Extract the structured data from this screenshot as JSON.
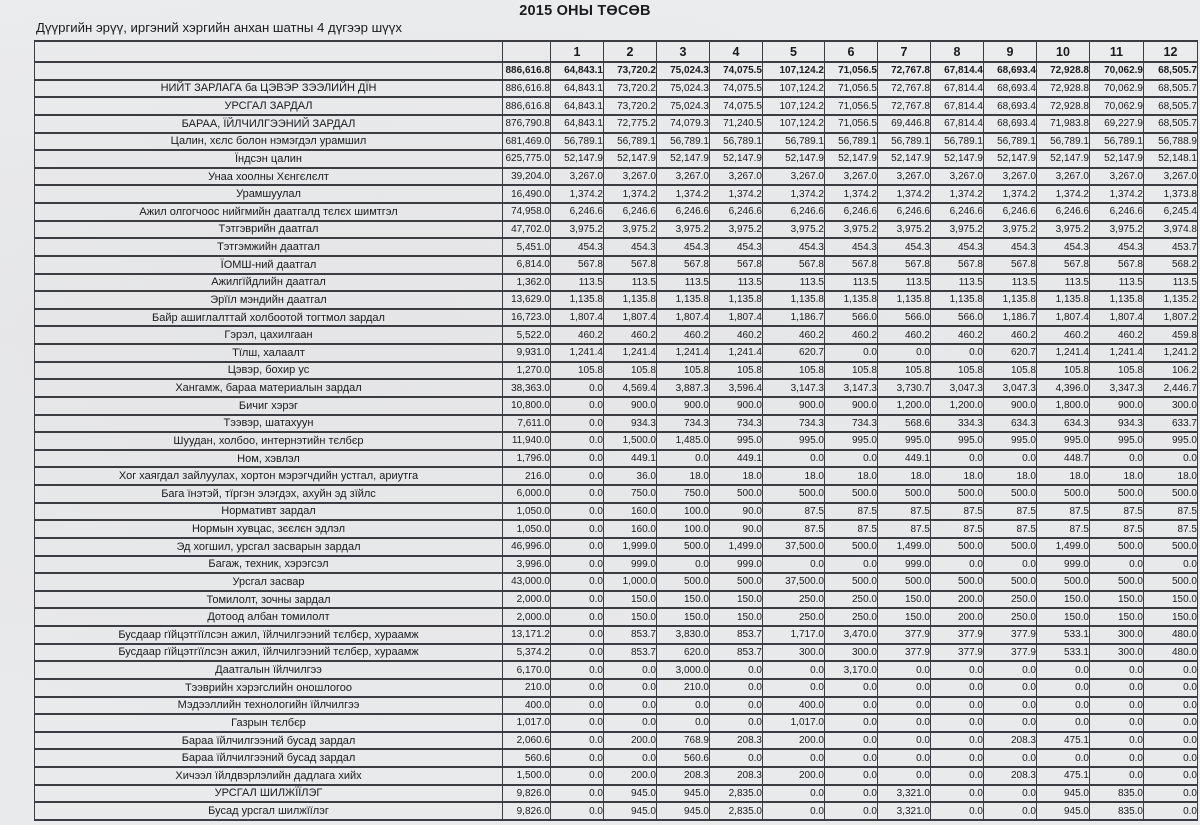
{
  "page": {
    "title": "2015 ОНЫ ТӨСӨВ",
    "subtitle": "Дүүргийн эрүү, иргэний хэргийн анхан шатны 4 дүгээр шүүх"
  },
  "colors": {
    "paper": "#e9eaec",
    "ink": "#1a1b1f",
    "grid": "#3b3d43"
  },
  "table": {
    "month_headers": [
      "1",
      "2",
      "3",
      "4",
      "5",
      "6",
      "7",
      "8",
      "9",
      "10",
      "11",
      "12"
    ],
    "rows": [
      {
        "label": "",
        "bold": true,
        "values": [
          "886,616.8",
          "64,843.1",
          "73,720.2",
          "75,024.3",
          "74,075.5",
          "107,124.2",
          "71,056.5",
          "72,767.8",
          "67,814.4",
          "68,693.4",
          "72,928.8",
          "70,062.9",
          "68,505.7"
        ]
      },
      {
        "label": "НИЙТ ЗАРЛАГА ба ЦЭВЭР ЗЭЭЛИЙН ДЇН",
        "values": [
          "886,616.8",
          "64,843.1",
          "73,720.2",
          "75,024.3",
          "74,075.5",
          "107,124.2",
          "71,056.5",
          "72,767.8",
          "67,814.4",
          "68,693.4",
          "72,928.8",
          "70,062.9",
          "68,505.7"
        ]
      },
      {
        "label": "УРСГАЛ ЗАРДАЛ",
        "values": [
          "886,616.8",
          "64,843.1",
          "73,720.2",
          "75,024.3",
          "74,075.5",
          "107,124.2",
          "71,056.5",
          "72,767.8",
          "67,814.4",
          "68,693.4",
          "72,928.8",
          "70,062.9",
          "68,505.7"
        ]
      },
      {
        "label": "БАРАА, ЇЙЛЧИЛГЭЭНИЙ ЗАРДАЛ",
        "values": [
          "876,790.8",
          "64,843.1",
          "72,775.2",
          "74,079.3",
          "71,240.5",
          "107,124.2",
          "71,056.5",
          "69,446.8",
          "67,814.4",
          "68,693.4",
          "71,983.8",
          "69,227.9",
          "68,505.7"
        ]
      },
      {
        "label": "Цалин, хєлс болон нэмэгдэл урамшил",
        "values": [
          "681,469.0",
          "56,789.1",
          "56,789.1",
          "56,789.1",
          "56,789.1",
          "56,789.1",
          "56,789.1",
          "56,789.1",
          "56,789.1",
          "56,789.1",
          "56,789.1",
          "56,789.1",
          "56,788.9"
        ]
      },
      {
        "label": "Їндсэн цалин",
        "values": [
          "625,775.0",
          "52,147.9",
          "52,147.9",
          "52,147.9",
          "52,147.9",
          "52,147.9",
          "52,147.9",
          "52,147.9",
          "52,147.9",
          "52,147.9",
          "52,147.9",
          "52,147.9",
          "52,148.1"
        ]
      },
      {
        "label": "Унаа хоолны Хєнгєлєлт",
        "values": [
          "39,204.0",
          "3,267.0",
          "3,267.0",
          "3,267.0",
          "3,267.0",
          "3,267.0",
          "3,267.0",
          "3,267.0",
          "3,267.0",
          "3,267.0",
          "3,267.0",
          "3,267.0",
          "3,267.0"
        ]
      },
      {
        "label": "Урамшуулал",
        "values": [
          "16,490.0",
          "1,374.2",
          "1,374.2",
          "1,374.2",
          "1,374.2",
          "1,374.2",
          "1,374.2",
          "1,374.2",
          "1,374.2",
          "1,374.2",
          "1,374.2",
          "1,374.2",
          "1,373.8"
        ]
      },
      {
        "label": "Ажил олгогчоос нийгмийн даатгалд тєлєх шимтгэл",
        "values": [
          "74,958.0",
          "6,246.6",
          "6,246.6",
          "6,246.6",
          "6,246.6",
          "6,246.6",
          "6,246.6",
          "6,246.6",
          "6,246.6",
          "6,246.6",
          "6,246.6",
          "6,246.6",
          "6,245.4"
        ]
      },
      {
        "label": "Тэтгэврийн даатгал",
        "values": [
          "47,702.0",
          "3,975.2",
          "3,975.2",
          "3,975.2",
          "3,975.2",
          "3,975.2",
          "3,975.2",
          "3,975.2",
          "3,975.2",
          "3,975.2",
          "3,975.2",
          "3,975.2",
          "3,974.8"
        ]
      },
      {
        "label": "Тэтгэмжийн даатгал",
        "values": [
          "5,451.0",
          "454.3",
          "454.3",
          "454.3",
          "454.3",
          "454.3",
          "454.3",
          "454.3",
          "454.3",
          "454.3",
          "454.3",
          "454.3",
          "453.7"
        ]
      },
      {
        "label": "ЇОМШ-ний даатгал",
        "values": [
          "6,814.0",
          "567.8",
          "567.8",
          "567.8",
          "567.8",
          "567.8",
          "567.8",
          "567.8",
          "567.8",
          "567.8",
          "567.8",
          "567.8",
          "568.2"
        ]
      },
      {
        "label": "Ажилгїйдлийн даатгал",
        "values": [
          "1,362.0",
          "113.5",
          "113.5",
          "113.5",
          "113.5",
          "113.5",
          "113.5",
          "113.5",
          "113.5",
          "113.5",
          "113.5",
          "113.5",
          "113.5"
        ]
      },
      {
        "label": "Эрїїл мэндийн даатгал",
        "values": [
          "13,629.0",
          "1,135.8",
          "1,135.8",
          "1,135.8",
          "1,135.8",
          "1,135.8",
          "1,135.8",
          "1,135.8",
          "1,135.8",
          "1,135.8",
          "1,135.8",
          "1,135.8",
          "1,135.2"
        ]
      },
      {
        "label": "Байр ашиглалттай холбоотой тогтмол зардал",
        "values": [
          "16,723.0",
          "1,807.4",
          "1,807.4",
          "1,807.4",
          "1,807.4",
          "1,186.7",
          "566.0",
          "566.0",
          "566.0",
          "1,186.7",
          "1,807.4",
          "1,807.4",
          "1,807.2"
        ]
      },
      {
        "label": "Гэрэл, цахилгаан",
        "values": [
          "5,522.0",
          "460.2",
          "460.2",
          "460.2",
          "460.2",
          "460.2",
          "460.2",
          "460.2",
          "460.2",
          "460.2",
          "460.2",
          "460.2",
          "459.8"
        ]
      },
      {
        "label": "Тїлш, халаалт",
        "values": [
          "9,931.0",
          "1,241.4",
          "1,241.4",
          "1,241.4",
          "1,241.4",
          "620.7",
          "0.0",
          "0.0",
          "0.0",
          "620.7",
          "1,241.4",
          "1,241.4",
          "1,241.2"
        ]
      },
      {
        "label": "Цэвэр, бохир ус",
        "values": [
          "1,270.0",
          "105.8",
          "105.8",
          "105.8",
          "105.8",
          "105.8",
          "105.8",
          "105.8",
          "105.8",
          "105.8",
          "105.8",
          "105.8",
          "106.2"
        ]
      },
      {
        "label": "Хангамж, бараа материалын зардал",
        "values": [
          "38,363.0",
          "0.0",
          "4,569.4",
          "3,887.3",
          "3,596.4",
          "3,147.3",
          "3,147.3",
          "3,730.7",
          "3,047.3",
          "3,047.3",
          "4,396.0",
          "3,347.3",
          "2,446.7"
        ]
      },
      {
        "label": "Бичиг хэрэг",
        "values": [
          "10,800.0",
          "0.0",
          "900.0",
          "900.0",
          "900.0",
          "900.0",
          "900.0",
          "1,200.0",
          "1,200.0",
          "900.0",
          "1,800.0",
          "900.0",
          "300.0"
        ]
      },
      {
        "label": "Тээвэр, шатахуун",
        "values": [
          "7,611.0",
          "0.0",
          "934.3",
          "734.3",
          "734.3",
          "734.3",
          "734.3",
          "568.6",
          "334.3",
          "634.3",
          "634.3",
          "934.3",
          "633.7"
        ]
      },
      {
        "label": "Шуудан, холбоо, интернэтийн тєлбєр",
        "values": [
          "11,940.0",
          "0.0",
          "1,500.0",
          "1,485.0",
          "995.0",
          "995.0",
          "995.0",
          "995.0",
          "995.0",
          "995.0",
          "995.0",
          "995.0",
          "995.0"
        ]
      },
      {
        "label": "Ном, хэвлэл",
        "values": [
          "1,796.0",
          "0.0",
          "449.1",
          "0.0",
          "449.1",
          "0.0",
          "0.0",
          "449.1",
          "0.0",
          "0.0",
          "448.7",
          "0.0",
          "0.0"
        ]
      },
      {
        "label": "Хог хаягдал зайлуулах, хортон мэрэгчдийн устгал, ариутга",
        "values": [
          "216.0",
          "0.0",
          "36.0",
          "18.0",
          "18.0",
          "18.0",
          "18.0",
          "18.0",
          "18.0",
          "18.0",
          "18.0",
          "18.0",
          "18.0"
        ]
      },
      {
        "label": "Бага їнэтэй, тїргэн элэгдэх, ахуйн эд зїйлс",
        "values": [
          "6,000.0",
          "0.0",
          "750.0",
          "750.0",
          "500.0",
          "500.0",
          "500.0",
          "500.0",
          "500.0",
          "500.0",
          "500.0",
          "500.0",
          "500.0"
        ]
      },
      {
        "label": "Нормативт зардал",
        "values": [
          "1,050.0",
          "0.0",
          "160.0",
          "100.0",
          "90.0",
          "87.5",
          "87.5",
          "87.5",
          "87.5",
          "87.5",
          "87.5",
          "87.5",
          "87.5"
        ]
      },
      {
        "label": "Нормын хувцас, зєєлєн эдлэл",
        "values": [
          "1,050.0",
          "0.0",
          "160.0",
          "100.0",
          "90.0",
          "87.5",
          "87.5",
          "87.5",
          "87.5",
          "87.5",
          "87.5",
          "87.5",
          "87.5"
        ]
      },
      {
        "label": "Эд хогшил, урсгал засварын зардал",
        "values": [
          "46,996.0",
          "0.0",
          "1,999.0",
          "500.0",
          "1,499.0",
          "37,500.0",
          "500.0",
          "1,499.0",
          "500.0",
          "500.0",
          "1,499.0",
          "500.0",
          "500.0"
        ]
      },
      {
        "label": "Багаж, техник, хэрэгсэл",
        "values": [
          "3,996.0",
          "0.0",
          "999.0",
          "0.0",
          "999.0",
          "0.0",
          "0.0",
          "999.0",
          "0.0",
          "0.0",
          "999.0",
          "0.0",
          "0.0"
        ]
      },
      {
        "label": "Урсгал засвар",
        "values": [
          "43,000.0",
          "0.0",
          "1,000.0",
          "500.0",
          "500.0",
          "37,500.0",
          "500.0",
          "500.0",
          "500.0",
          "500.0",
          "500.0",
          "500.0",
          "500.0"
        ]
      },
      {
        "label": "Томилолт, зочны зардал",
        "values": [
          "2,000.0",
          "0.0",
          "150.0",
          "150.0",
          "150.0",
          "250.0",
          "250.0",
          "150.0",
          "200.0",
          "250.0",
          "150.0",
          "150.0",
          "150.0"
        ]
      },
      {
        "label": "Дотоод албан томилолт",
        "values": [
          "2,000.0",
          "0.0",
          "150.0",
          "150.0",
          "150.0",
          "250.0",
          "250.0",
          "150.0",
          "200.0",
          "250.0",
          "150.0",
          "150.0",
          "150.0"
        ]
      },
      {
        "label": "Бусдаар гїйцэтгїїлсэн ажил, їйлчилгээний тєлбєр, хураамж",
        "values": [
          "13,171.2",
          "0.0",
          "853.7",
          "3,830.0",
          "853.7",
          "1,717.0",
          "3,470.0",
          "377.9",
          "377.9",
          "377.9",
          "533.1",
          "300.0",
          "480.0"
        ]
      },
      {
        "label": "Бусдаар гїйцэтгїїлсэн ажил, їйлчилгээний тєлбєр, хураамж",
        "values": [
          "5,374.2",
          "0.0",
          "853.7",
          "620.0",
          "853.7",
          "300.0",
          "300.0",
          "377.9",
          "377.9",
          "377.9",
          "533.1",
          "300.0",
          "480.0"
        ]
      },
      {
        "label": "Даатгалын їйлчилгээ",
        "values": [
          "6,170.0",
          "0.0",
          "0.0",
          "3,000.0",
          "0.0",
          "0.0",
          "3,170.0",
          "0.0",
          "0.0",
          "0.0",
          "0.0",
          "0.0",
          "0.0"
        ]
      },
      {
        "label": "Тээврийн хэрэгслийн оношлогоо",
        "values": [
          "210.0",
          "0.0",
          "0.0",
          "210.0",
          "0.0",
          "0.0",
          "0.0",
          "0.0",
          "0.0",
          "0.0",
          "0.0",
          "0.0",
          "0.0"
        ]
      },
      {
        "label": "Мэдээллийн технологийн їйлчилгээ",
        "values": [
          "400.0",
          "0.0",
          "0.0",
          "0.0",
          "0.0",
          "400.0",
          "0.0",
          "0.0",
          "0.0",
          "0.0",
          "0.0",
          "0.0",
          "0.0"
        ]
      },
      {
        "label": "Газрын тєлбєр",
        "values": [
          "1,017.0",
          "0.0",
          "0.0",
          "0.0",
          "0.0",
          "1,017.0",
          "0.0",
          "0.0",
          "0.0",
          "0.0",
          "0.0",
          "0.0",
          "0.0"
        ]
      },
      {
        "label": "Бараа їйлчилгээний бусад зардал",
        "values": [
          "2,060.6",
          "0.0",
          "200.0",
          "768.9",
          "208.3",
          "200.0",
          "0.0",
          "0.0",
          "0.0",
          "208.3",
          "475.1",
          "0.0",
          "0.0"
        ]
      },
      {
        "label": "Бараа їйлчилгээний бусад зардал",
        "values": [
          "560.6",
          "0.0",
          "0.0",
          "560.6",
          "0.0",
          "0.0",
          "0.0",
          "0.0",
          "0.0",
          "0.0",
          "0.0",
          "0.0",
          "0.0"
        ]
      },
      {
        "label": "Хичээл їйлдвэрлэлийн дадлага хийх",
        "values": [
          "1,500.0",
          "0.0",
          "200.0",
          "208.3",
          "208.3",
          "200.0",
          "0.0",
          "0.0",
          "0.0",
          "208.3",
          "475.1",
          "0.0",
          "0.0"
        ]
      },
      {
        "label": "УРСГАЛ ШИЛЖЇЇЛЭГ",
        "values": [
          "9,826.0",
          "0.0",
          "945.0",
          "945.0",
          "2,835.0",
          "0.0",
          "0.0",
          "3,321.0",
          "0.0",
          "0.0",
          "945.0",
          "835.0",
          "0.0"
        ]
      },
      {
        "label": "Бусад урсгал шилжїїлэг",
        "values": [
          "9,826.0",
          "0.0",
          "945.0",
          "945.0",
          "2,835.0",
          "0.0",
          "0.0",
          "3,321.0",
          "0.0",
          "0.0",
          "945.0",
          "835.0",
          "0.0"
        ]
      }
    ]
  }
}
